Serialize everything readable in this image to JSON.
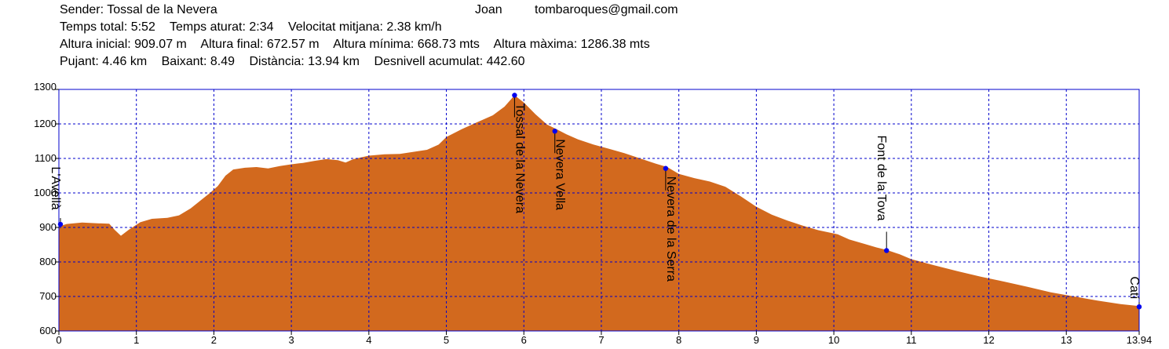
{
  "header": {
    "sender": "Sender: Tossal de la Nevera",
    "author": "Joan",
    "email": "tombaroques@gmail.com",
    "temps_total": "Temps total: 5:52",
    "temps_aturat": "Temps aturat: 2:34",
    "velocitat": "Velocitat mitjana: 2.38 km/h",
    "altura_inicial": "Altura inicial: 909.07 m",
    "altura_final": "Altura final: 672.57 m",
    "altura_minima": "Altura mínima: 668.73 mts",
    "altura_maxima": "Altura màxima: 1286.38 mts",
    "pujant": "Pujant:  4.46 km",
    "baixant": "Baixant: 8.49",
    "distancia": "Distància: 13.94 km",
    "desnivell": "Desnivell acumulat: 442.60"
  },
  "chart_data": {
    "type": "area",
    "xlim": [
      0,
      13.94
    ],
    "ylim": [
      600,
      1300
    ],
    "x_ticks": [
      "0",
      "1",
      "2",
      "3",
      "4",
      "5",
      "6",
      "7",
      "8",
      "9",
      "10",
      "11",
      "12",
      "13",
      "13.94"
    ],
    "y_ticks": [
      "600",
      "700",
      "800",
      "900",
      "1000",
      "1100",
      "1200",
      "1300"
    ],
    "grid": true,
    "fill_color": "#D2691E",
    "frame_color": "#0000CC",
    "marker_color": "#0000EE",
    "profile": [
      [
        0,
        903
      ],
      [
        0.1,
        910
      ],
      [
        0.3,
        914
      ],
      [
        0.5,
        912
      ],
      [
        0.65,
        911
      ],
      [
        0.72,
        893
      ],
      [
        0.8,
        876
      ],
      [
        0.9,
        893
      ],
      [
        1.05,
        915
      ],
      [
        1.2,
        925
      ],
      [
        1.4,
        928
      ],
      [
        1.55,
        935
      ],
      [
        1.7,
        955
      ],
      [
        1.85,
        982
      ],
      [
        1.95,
        1000
      ],
      [
        2.05,
        1020
      ],
      [
        2.15,
        1050
      ],
      [
        2.25,
        1068
      ],
      [
        2.4,
        1073
      ],
      [
        2.55,
        1075
      ],
      [
        2.7,
        1071
      ],
      [
        2.85,
        1078
      ],
      [
        3.0,
        1083
      ],
      [
        3.15,
        1087
      ],
      [
        3.3,
        1093
      ],
      [
        3.45,
        1098
      ],
      [
        3.6,
        1095
      ],
      [
        3.7,
        1088
      ],
      [
        3.8,
        1098
      ],
      [
        4.0,
        1108
      ],
      [
        4.2,
        1112
      ],
      [
        4.4,
        1113
      ],
      [
        4.6,
        1120
      ],
      [
        4.75,
        1125
      ],
      [
        4.9,
        1140
      ],
      [
        5.0,
        1162
      ],
      [
        5.2,
        1185
      ],
      [
        5.4,
        1205
      ],
      [
        5.6,
        1225
      ],
      [
        5.75,
        1250
      ],
      [
        5.88,
        1283
      ],
      [
        6.0,
        1262
      ],
      [
        6.15,
        1228
      ],
      [
        6.3,
        1198
      ],
      [
        6.42,
        1185
      ],
      [
        6.55,
        1170
      ],
      [
        6.7,
        1155
      ],
      [
        6.9,
        1140
      ],
      [
        7.1,
        1128
      ],
      [
        7.3,
        1115
      ],
      [
        7.5,
        1100
      ],
      [
        7.7,
        1085
      ],
      [
        7.85,
        1075
      ],
      [
        8.0,
        1055
      ],
      [
        8.2,
        1043
      ],
      [
        8.4,
        1033
      ],
      [
        8.6,
        1018
      ],
      [
        8.8,
        990
      ],
      [
        9.0,
        960
      ],
      [
        9.2,
        937
      ],
      [
        9.4,
        920
      ],
      [
        9.6,
        905
      ],
      [
        9.8,
        892
      ],
      [
        10.05,
        880
      ],
      [
        10.2,
        865
      ],
      [
        10.4,
        852
      ],
      [
        10.55,
        842
      ],
      [
        10.68,
        835
      ],
      [
        10.85,
        822
      ],
      [
        11.0,
        808
      ],
      [
        11.3,
        790
      ],
      [
        11.6,
        773
      ],
      [
        11.9,
        757
      ],
      [
        12.2,
        743
      ],
      [
        12.5,
        728
      ],
      [
        12.8,
        712
      ],
      [
        13.1,
        700
      ],
      [
        13.4,
        688
      ],
      [
        13.7,
        678
      ],
      [
        13.94,
        672
      ]
    ],
    "waypoints": [
      {
        "name": "L'Avellà",
        "x": 0.02,
        "y": 909
      },
      {
        "name": "Tossal de la Nevera",
        "x": 5.88,
        "y": 1283
      },
      {
        "name": "Nevera Vella",
        "x": 6.4,
        "y": 1179
      },
      {
        "name": "Nevera de la Serra",
        "x": 7.83,
        "y": 1071
      },
      {
        "name": "Font de la Tova",
        "x": 10.68,
        "y": 833
      },
      {
        "name": "Catí",
        "x": 13.94,
        "y": 670
      }
    ]
  }
}
